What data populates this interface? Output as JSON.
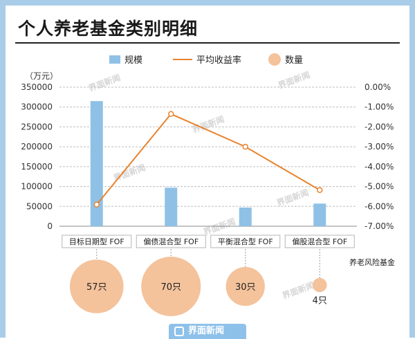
{
  "title": "个人养老基金类别明细",
  "unit": "（万元）",
  "source": "养老风险基金",
  "brand": "界面新闻",
  "watermark": "界面新闻",
  "colors": {
    "bar": "#8fc1e6",
    "line": "#e8832d",
    "bubble": "#f4c29b",
    "frame": "#a9cde9"
  },
  "chart_data": {
    "type": "bar",
    "categories": [
      "目标日期型 FOF",
      "偏债混合型 FOF",
      "平衡混合型 FOF",
      "偏股混合型 FOF"
    ],
    "series": [
      {
        "name": "规模",
        "kind": "bar",
        "axis": "left",
        "values": [
          315000,
          97000,
          47000,
          57000
        ]
      },
      {
        "name": "平均收益率",
        "kind": "line",
        "axis": "right",
        "values": [
          -5.91,
          -1.35,
          -3.0,
          -5.18
        ]
      },
      {
        "name": "数量",
        "kind": "bubble",
        "values": [
          57,
          70,
          30,
          4
        ],
        "labels": [
          "57只",
          "70只",
          "30只",
          "4只"
        ]
      }
    ],
    "ylim_left": [
      0,
      350000
    ],
    "yticks_left": [
      "0",
      "50000",
      "100000",
      "150000",
      "200000",
      "250000",
      "300000",
      "350000"
    ],
    "ylim_right": [
      -7.0,
      0.0
    ],
    "yticks_right": [
      "0.00%",
      "-1.00%",
      "-2.00%",
      "-3.00%",
      "-4.00%",
      "-5.00%",
      "-6.00%",
      "-7.00%"
    ],
    "grid": true,
    "legend_position": "top"
  }
}
